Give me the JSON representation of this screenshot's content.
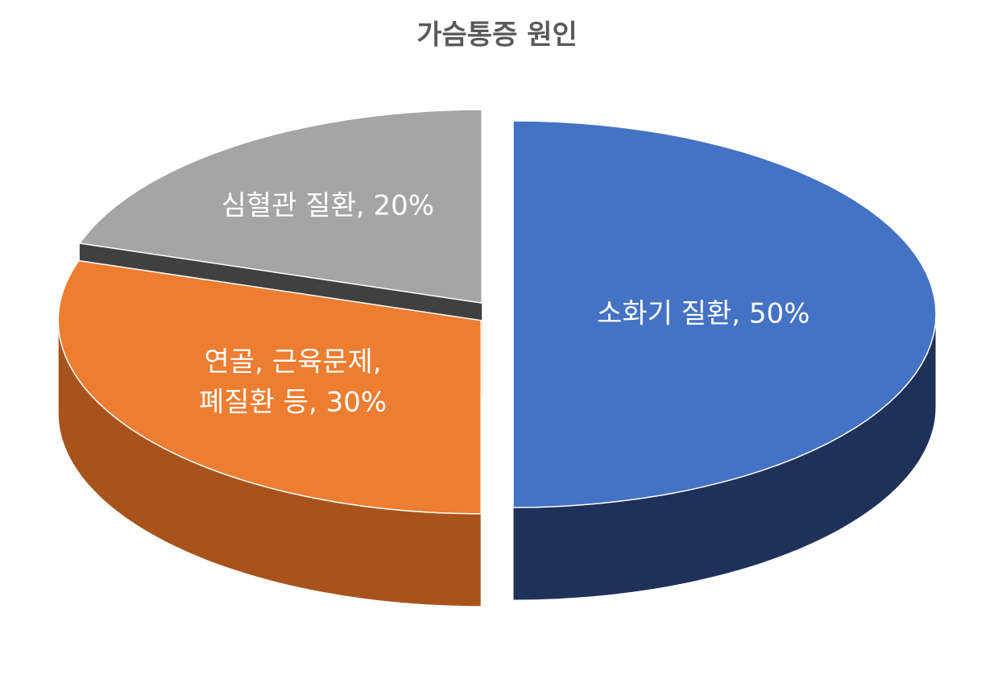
{
  "chart_data": {
    "type": "pie",
    "title": "가슴통증 원인",
    "values": [
      50,
      30,
      20
    ],
    "value_labels": [
      "소화기 질환, 50%",
      "연골, 근육문제,\n폐질환 등, 30%",
      "심혈관 질환, 20%"
    ],
    "colors": [
      "#4472c4",
      "#ed7d31",
      "#a5a5a5"
    ],
    "side_colors": [
      "#1e3158",
      "#a9531c",
      "#404040"
    ]
  }
}
